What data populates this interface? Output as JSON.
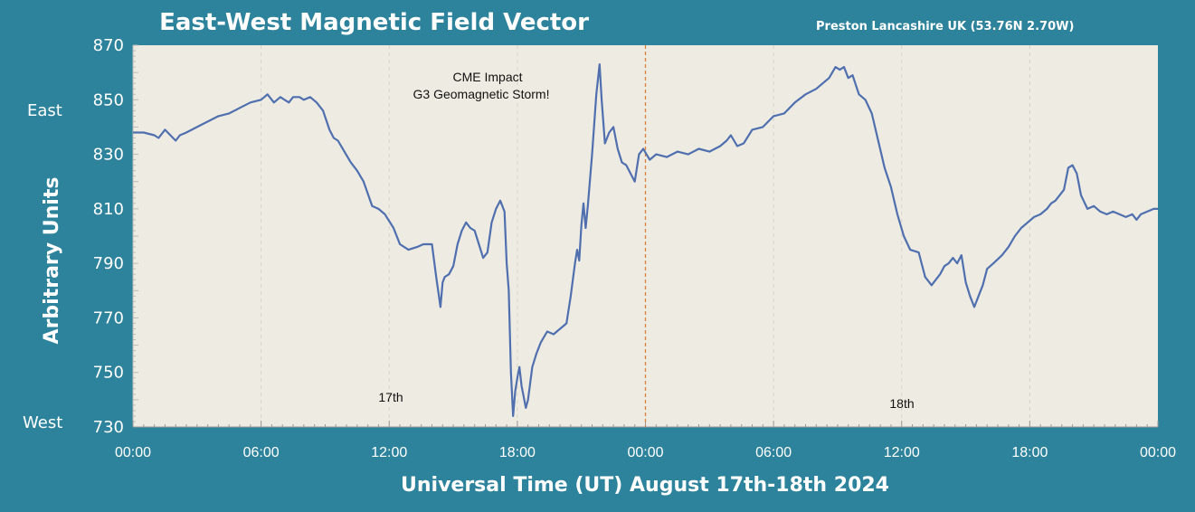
{
  "chart_data": {
    "type": "line",
    "title": "East-West Magnetic Field Vector",
    "subtitle": "Preston Lancashire UK (53.76N 2.70W)",
    "xlabel": "Universal Time (UT) August 17th-18th 2024",
    "ylabel": "Arbitrary Units",
    "ylim": [
      730,
      870
    ],
    "yticks": [
      "730",
      "750",
      "770",
      "790",
      "810",
      "830",
      "850",
      "870"
    ],
    "xlim": [
      0,
      48
    ],
    "xticks": [
      "00:00",
      "06:00",
      "12:00",
      "18:00",
      "00:00",
      "06:00",
      "12:00",
      "18:00",
      "00:00"
    ],
    "direction_labels": {
      "top": "East",
      "bottom": "West"
    },
    "day_labels": [
      "17th",
      "18th"
    ],
    "annotation": [
      "CME Impact",
      "G3 Geomagnetic Storm!"
    ],
    "grid": "vertical-dashed",
    "day_divider_hour": 24,
    "colors": {
      "background": "#2e839c",
      "plot_bg": "#eeebe2",
      "line": "#4f6faf",
      "divider": "#d9803a"
    },
    "series": [
      {
        "x": [
          0,
          0.5,
          1,
          1.2,
          1.5,
          2,
          2.2,
          2.5,
          3,
          3.5,
          4,
          4.5,
          5,
          5.5,
          6,
          6.3,
          6.6,
          6.9,
          7.1,
          7.3,
          7.5,
          7.8,
          8,
          8.3,
          8.6,
          8.9,
          9.2,
          9.4,
          9.6,
          9.9,
          10.2,
          10.5,
          10.8,
          11.2,
          11.5,
          11.8,
          12.2,
          12.5,
          12.9,
          13.3,
          13.6,
          14,
          14.2,
          14.4,
          14.5,
          14.6,
          14.8,
          15,
          15.2,
          15.4,
          15.6,
          15.8,
          16,
          16.2,
          16.4,
          16.6,
          16.8,
          17,
          17.2,
          17.4,
          17.5,
          17.6,
          17.7,
          17.8,
          17.9,
          18,
          18.1,
          18.2,
          18.4,
          18.5,
          18.7,
          18.9,
          19.1,
          19.4,
          19.7,
          20,
          20.3,
          20.5,
          20.7,
          20.8,
          20.9,
          21,
          21.1,
          21.2,
          21.3,
          21.5,
          21.7,
          21.85,
          21.95,
          22.1,
          22.3,
          22.5,
          22.7,
          22.9,
          23.1,
          23.3,
          23.5,
          23.7,
          23.9,
          24.2,
          24.5,
          25,
          25.5,
          26,
          26.5,
          27,
          27.5,
          27.8,
          28,
          28.3,
          28.6,
          29,
          29.5,
          30,
          30.5,
          31,
          31.5,
          32,
          32.3,
          32.6,
          32.9,
          33.1,
          33.3,
          33.5,
          33.7,
          34,
          34.3,
          34.6,
          34.9,
          35.2,
          35.5,
          35.8,
          36.1,
          36.4,
          36.8,
          37.1,
          37.4,
          37.6,
          37.8,
          38,
          38.2,
          38.4,
          38.6,
          38.8,
          39,
          39.2,
          39.4,
          39.6,
          39.8,
          40,
          40.3,
          40.7,
          41,
          41.3,
          41.6,
          41.9,
          42.2,
          42.5,
          42.8,
          43,
          43.2,
          43.4,
          43.6,
          43.8,
          44,
          44.2,
          44.4,
          44.7,
          45,
          45.3,
          45.6,
          45.9,
          46.2,
          46.5,
          46.8,
          47,
          47.2,
          47.5,
          47.8,
          48
        ],
        "y": [
          838,
          838,
          837,
          836,
          839,
          835,
          837,
          838,
          840,
          842,
          844,
          845,
          847,
          849,
          850,
          852,
          849,
          851,
          850,
          849,
          851,
          851,
          850,
          851,
          849,
          846,
          839,
          836,
          835,
          831,
          827,
          824,
          820,
          811,
          810,
          808,
          803,
          797,
          795,
          796,
          797,
          797,
          785,
          774,
          783,
          785,
          786,
          789,
          797,
          802,
          805,
          803,
          802,
          797,
          792,
          794,
          805,
          810,
          813,
          809,
          790,
          780,
          750,
          734,
          743,
          748,
          752,
          745,
          737,
          740,
          752,
          757,
          761,
          765,
          764,
          766,
          768,
          778,
          790,
          795,
          791,
          804,
          812,
          803,
          811,
          830,
          852,
          863,
          850,
          834,
          838,
          840,
          832,
          827,
          826,
          823,
          820,
          830,
          832,
          828,
          830,
          829,
          831,
          830,
          832,
          831,
          833,
          835,
          837,
          833,
          834,
          839,
          840,
          844,
          845,
          849,
          852,
          854,
          856,
          858,
          862,
          861,
          862,
          858,
          859,
          852,
          850,
          845,
          835,
          825,
          818,
          808,
          800,
          795,
          794,
          785,
          782,
          784,
          786,
          789,
          790,
          792,
          790,
          793,
          783,
          778,
          774,
          778,
          782,
          788,
          790,
          793,
          796,
          800,
          803,
          805,
          807,
          808,
          810,
          812,
          813,
          815,
          817,
          825,
          826,
          823,
          815,
          810,
          811,
          809,
          808,
          809,
          808,
          807,
          808,
          806,
          808,
          809,
          810,
          810
        ]
      }
    ]
  }
}
